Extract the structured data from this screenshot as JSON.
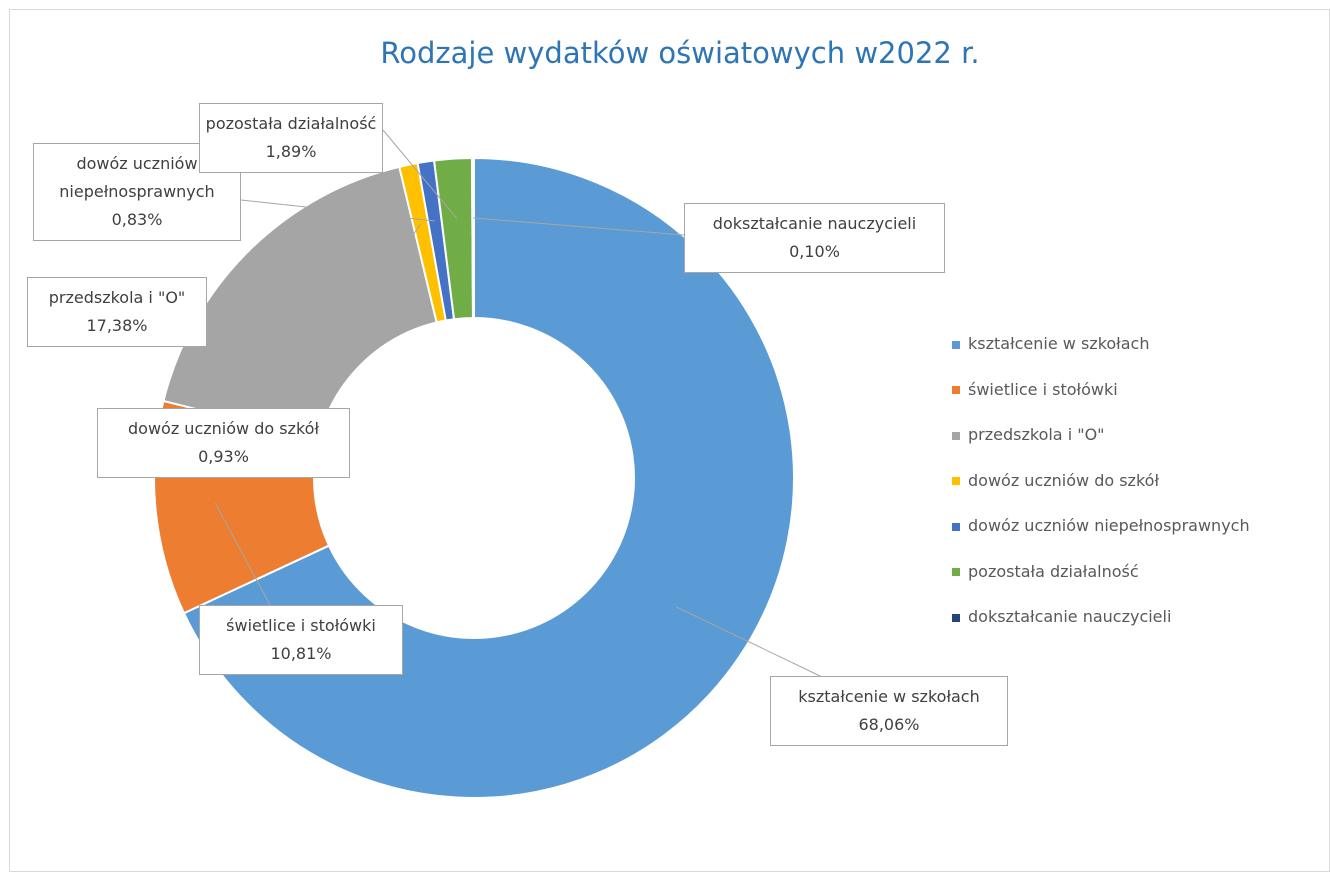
{
  "chart_data": {
    "type": "donut",
    "title": "Rodzaje wydatków oświatowych w2022 r.",
    "categories": [
      "kształcenie w szkołach",
      "świetlice i stołówki",
      "przedszkola i \"O\"",
      "dowóz uczniów do szkół",
      "dowóz uczniów niepełnosprawnych",
      "pozostała działalność",
      "dokształcanie nauczycieli"
    ],
    "values": [
      68.06,
      10.81,
      17.38,
      0.93,
      0.83,
      1.89,
      0.1
    ],
    "value_labels": [
      "68,06%",
      "10,81%",
      "17,38%",
      "0,93%",
      "0,83%",
      "1,89%",
      "0,10%"
    ],
    "colors": [
      "#5b9bd5",
      "#ed7d31",
      "#a5a5a5",
      "#ffc000",
      "#4472c4",
      "#70ad47",
      "#264478"
    ],
    "legend": "right"
  }
}
